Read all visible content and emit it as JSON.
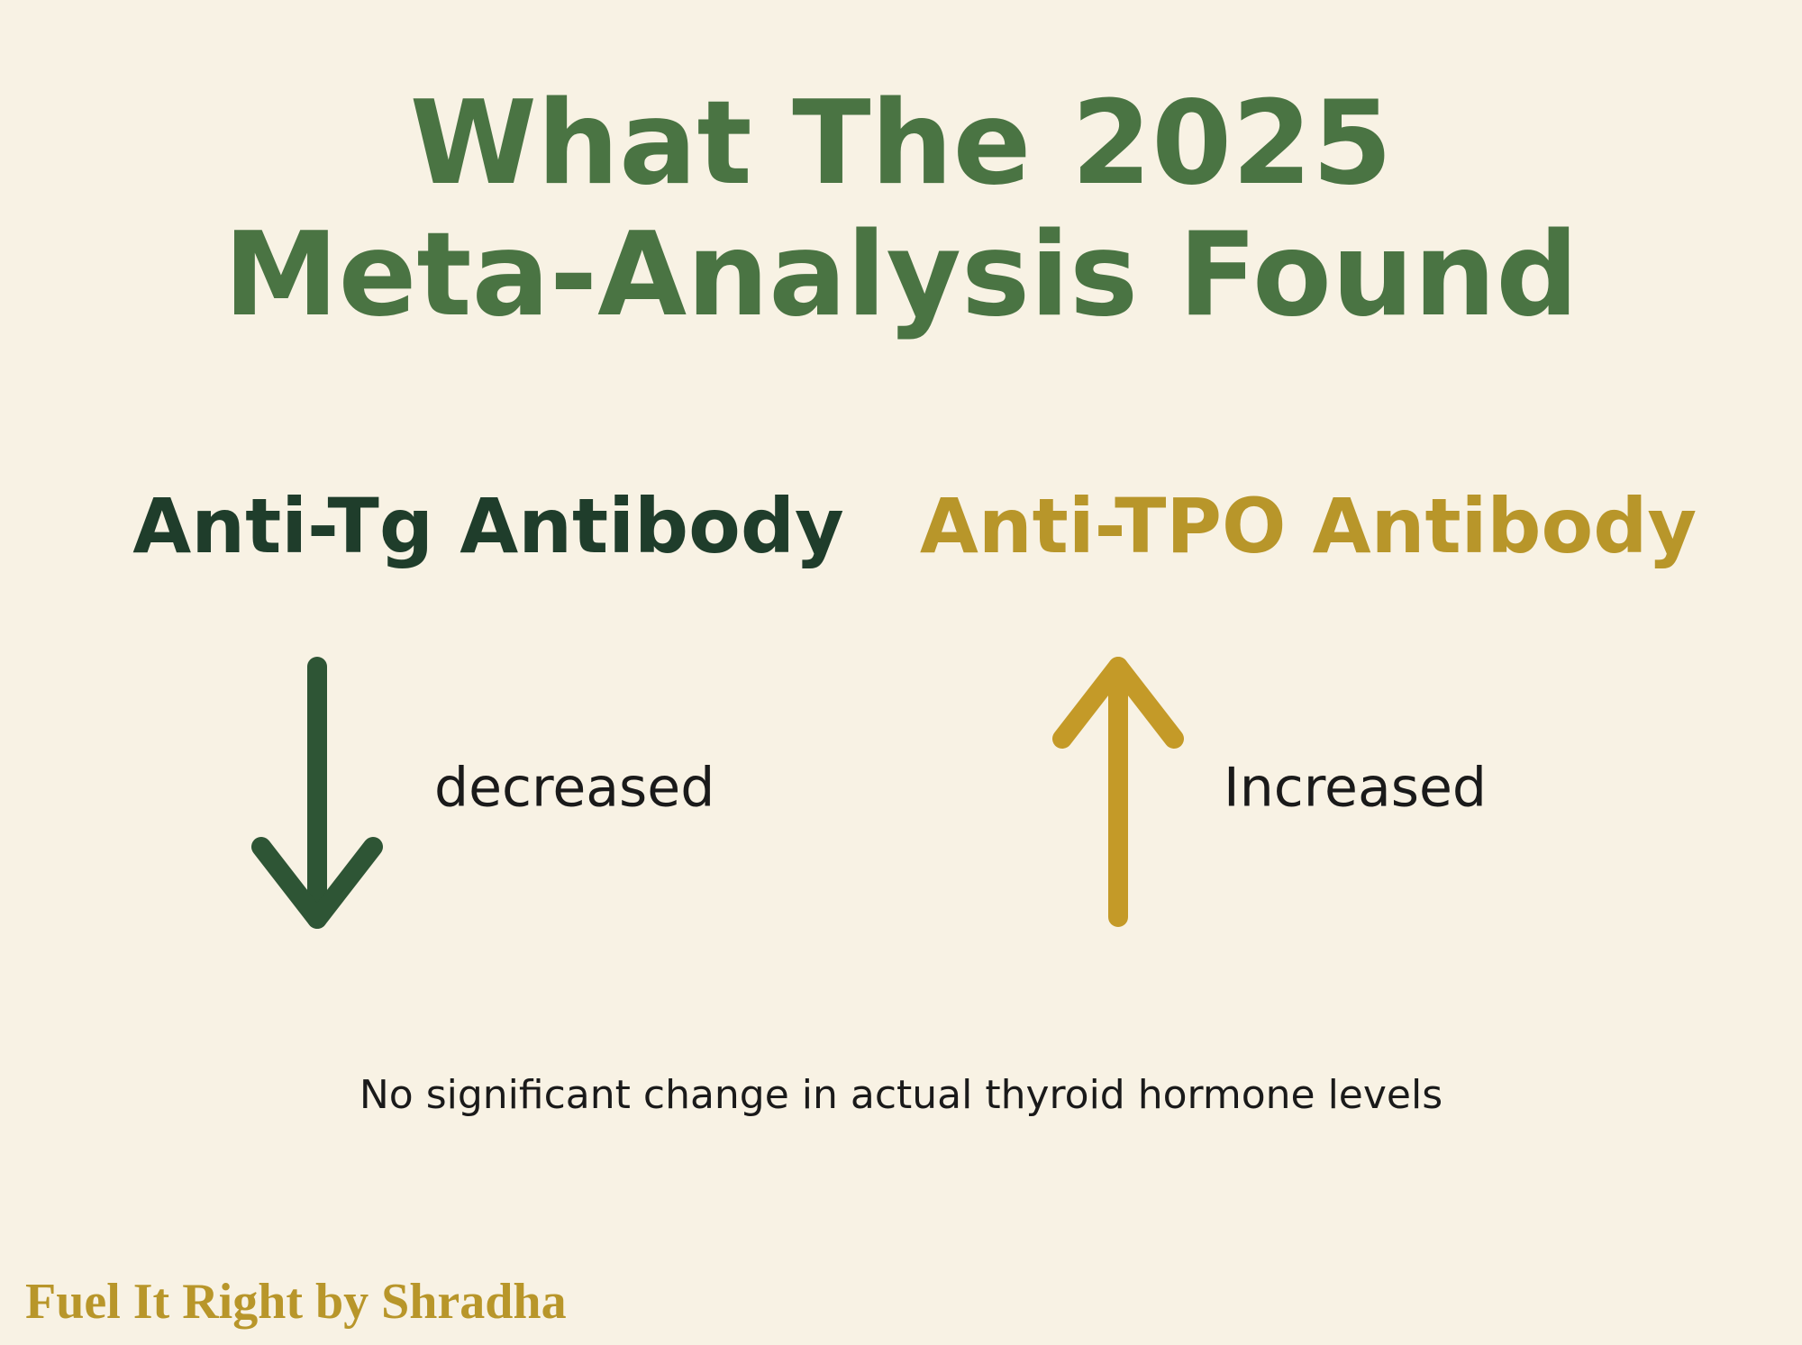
{
  "header": {
    "title_lines": [
      "What The 2025",
      "Meta-Analysis Found"
    ]
  },
  "findings": [
    {
      "label": "Anti-Tg Antibody",
      "direction": "decreased"
    },
    {
      "label": "Anti-TPO Antibody",
      "direction": "Increased"
    }
  ],
  "note": "No significant change in actual thyroid hormone levels",
  "brand": "Fuel It Right by Shradha"
}
